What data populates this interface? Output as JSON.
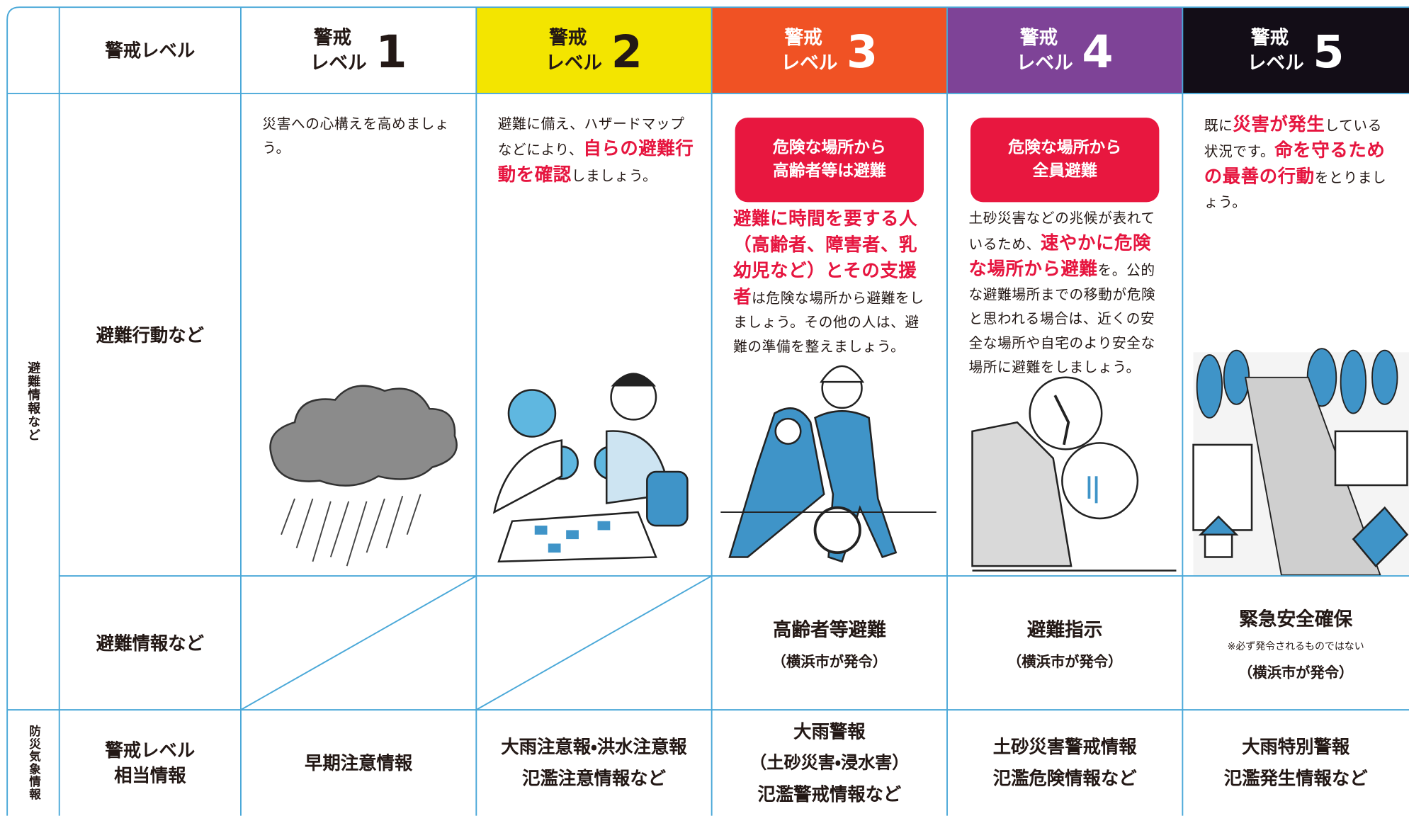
{
  "row_header": "警戒レベル",
  "side_labels": [
    "避難情報など",
    "防災気象情報"
  ],
  "row_labels": [
    "避難行動など",
    "避難情報など",
    "警戒レベル\n相当情報"
  ],
  "levels": [
    {
      "prefix": "警戒",
      "label": "レベル",
      "number": 1,
      "action": [
        {
          "text": "災害への心構えを高めましょう。"
        }
      ],
      "weather": [
        "早期注意情報"
      ]
    },
    {
      "prefix": "警戒",
      "label": "レベル",
      "number": 2,
      "action": [
        {
          "text": "避難に備え、ハザードマップなどにより、"
        },
        {
          "text": "自らの避難行動を確認",
          "em": true
        },
        {
          "text": "しましょう。"
        }
      ],
      "weather": [
        "大雨注意報・洪水注意報",
        "氾濫注意情報など"
      ]
    },
    {
      "prefix": "警戒",
      "label": "レベル",
      "number": 3,
      "box": "危険な場所から\n高齢者等は避難",
      "action": [
        {
          "text": "避難に時間を要する人（高齢者、障害者、乳幼児など）とその支援者",
          "em": true
        },
        {
          "text": "は危険な場所から避難をしましょう。その他の人は、避難の準備を整えましょう。"
        }
      ],
      "info": {
        "name": "高齢者等避難",
        "issuer": "（横浜市が発令）"
      },
      "weather": [
        "大雨警報",
        "（土砂災害・浸水害）",
        "氾濫警戒情報など"
      ]
    },
    {
      "prefix": "警戒",
      "label": "レベル",
      "number": 4,
      "box": "危険な場所から\n全員避難",
      "action": [
        {
          "text": "土砂災害などの兆候が表れているため、"
        },
        {
          "text": "速やかに危険な場所から避難",
          "em": true
        },
        {
          "text": "を。公的な避難場所までの移動が危険と思われる場合は、近くの安全な場所や自宅のより安全な場所に避難をしましょう。"
        }
      ],
      "info": {
        "name": "避難指示",
        "issuer": "（横浜市が発令）"
      },
      "weather": [
        "土砂災害警戒情報",
        "氾濫危険情報など"
      ]
    },
    {
      "prefix": "警戒",
      "label": "レベル",
      "number": 5,
      "action": [
        {
          "text": "既に"
        },
        {
          "text": "災害が発生",
          "em": true
        },
        {
          "text": "している状況です。"
        },
        {
          "text": "命を守るための最善の行動",
          "em": true
        },
        {
          "text": "をとりましょう。"
        }
      ],
      "info": {
        "name": "緊急安全確保",
        "note": "※必ず発令されるものではない",
        "issuer": "（横浜市が発令）"
      },
      "weather": [
        "大雨特別警報",
        "氾濫発生情報など"
      ]
    }
  ]
}
